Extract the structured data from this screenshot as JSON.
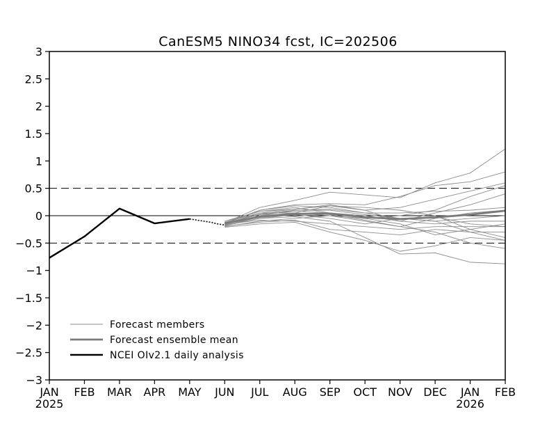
{
  "chart_data": {
    "type": "line",
    "title": "CanESM5 NINO34 fcst, IC=202506",
    "xlabel": "",
    "ylabel": "",
    "x_ticks": [
      "JAN",
      "FEB",
      "MAR",
      "APR",
      "MAY",
      "JUN",
      "JUL",
      "AUG",
      "SEP",
      "OCT",
      "NOV",
      "DEC",
      "JAN",
      "FEB"
    ],
    "x_year_labels": [
      {
        "index": 0,
        "label": "2025"
      },
      {
        "index": 12,
        "label": "2026"
      }
    ],
    "x_range": [
      "2025-01",
      "2026-02"
    ],
    "ylim": [
      -3,
      3
    ],
    "y_ticks": [
      3,
      2.5,
      2,
      1.5,
      1,
      0.5,
      0,
      -0.5,
      -1,
      -1.5,
      -2,
      -2.5,
      -3
    ],
    "y_tick_labels": [
      "3",
      "2.5",
      "2",
      "1.5",
      "1",
      "0.5",
      "0",
      "−0.5",
      "−1",
      "−1.5",
      "−2",
      "−2.5",
      "−3"
    ],
    "reference_lines": [
      {
        "y": 0.5,
        "style": "dashed"
      },
      {
        "y": 0,
        "style": "solid"
      },
      {
        "y": -0.5,
        "style": "dashed"
      }
    ],
    "legend": {
      "position": "bottom-left",
      "entries": [
        {
          "label": "Forecast members",
          "color": "#8c8c8c",
          "width": "thin"
        },
        {
          "label": "Forecast ensemble mean",
          "color": "#7a7a7a",
          "width": "medium"
        },
        {
          "label": "NCEI OIv2.1 daily analysis",
          "color": "#000000",
          "width": "thick"
        }
      ]
    },
    "series": [
      {
        "role": "observed",
        "x": [
          0,
          1,
          2,
          3,
          4
        ],
        "values": [
          -0.77,
          -0.38,
          0.13,
          -0.14,
          -0.06
        ]
      },
      {
        "role": "daily",
        "x": [
          4,
          4.2,
          4.4,
          4.6,
          4.8,
          5
        ],
        "values": [
          -0.06,
          -0.08,
          -0.1,
          -0.12,
          -0.15,
          -0.17
        ]
      },
      {
        "role": "mean",
        "x": [
          5,
          6,
          7,
          8,
          9,
          10,
          11,
          12,
          13
        ],
        "values": [
          -0.14,
          -0.02,
          0.03,
          0.04,
          -0.03,
          -0.06,
          -0.03,
          0.02,
          0.09
        ]
      },
      {
        "role": "member",
        "x": [
          5,
          6,
          7,
          8,
          9,
          10,
          11,
          12,
          13
        ],
        "values": [
          -0.13,
          0.15,
          0.28,
          0.43,
          0.38,
          0.33,
          0.6,
          0.78,
          1.22
        ]
      },
      {
        "role": "member",
        "x": [
          5,
          6,
          7,
          8,
          9,
          10,
          11,
          12,
          13
        ],
        "values": [
          -0.15,
          0.1,
          0.2,
          0.22,
          0.2,
          0.35,
          0.55,
          0.62,
          0.8
        ]
      },
      {
        "role": "member",
        "x": [
          5,
          6,
          7,
          8,
          9,
          10,
          11,
          12,
          13
        ],
        "values": [
          -0.12,
          0.05,
          0.12,
          0.2,
          0.1,
          0.15,
          0.3,
          0.45,
          0.6
        ]
      },
      {
        "role": "member",
        "x": [
          5,
          6,
          7,
          8,
          9,
          10,
          11,
          12,
          13
        ],
        "values": [
          -0.1,
          0.08,
          0.15,
          0.05,
          -0.05,
          0.0,
          0.1,
          0.35,
          0.55
        ]
      },
      {
        "role": "member",
        "x": [
          5,
          6,
          7,
          8,
          9,
          10,
          11,
          12,
          13
        ],
        "values": [
          -0.18,
          -0.02,
          0.05,
          0.18,
          0.1,
          -0.1,
          0.05,
          0.2,
          0.4
        ]
      },
      {
        "role": "member",
        "x": [
          5,
          6,
          7,
          8,
          9,
          10,
          11,
          12,
          13
        ],
        "values": [
          -0.15,
          0.0,
          0.1,
          0.12,
          0.05,
          0.05,
          0.08,
          0.1,
          0.15
        ]
      },
      {
        "role": "member",
        "x": [
          5,
          6,
          7,
          8,
          9,
          10,
          11,
          12,
          13
        ],
        "values": [
          -0.2,
          -0.1,
          -0.05,
          0.0,
          -0.1,
          -0.2,
          -0.05,
          0.05,
          0.1
        ]
      },
      {
        "role": "member",
        "x": [
          5,
          6,
          7,
          8,
          9,
          10,
          11,
          12,
          13
        ],
        "values": [
          -0.17,
          -0.05,
          0.02,
          -0.05,
          -0.15,
          -0.05,
          -0.1,
          -0.05,
          0.0
        ]
      },
      {
        "role": "member",
        "x": [
          5,
          6,
          7,
          8,
          9,
          10,
          11,
          12,
          13
        ],
        "values": [
          -0.14,
          0.02,
          0.08,
          0.05,
          0.0,
          -0.1,
          -0.15,
          -0.1,
          -0.1
        ]
      },
      {
        "role": "member",
        "x": [
          5,
          6,
          7,
          8,
          9,
          10,
          11,
          12,
          13
        ],
        "values": [
          -0.16,
          -0.08,
          -0.1,
          -0.15,
          -0.2,
          -0.25,
          -0.2,
          -0.2,
          -0.2
        ]
      },
      {
        "role": "member",
        "x": [
          5,
          6,
          7,
          8,
          9,
          10,
          11,
          12,
          13
        ],
        "values": [
          -0.19,
          -0.12,
          -0.08,
          -0.25,
          -0.3,
          -0.35,
          -0.25,
          -0.3,
          -0.3
        ]
      },
      {
        "role": "member",
        "x": [
          5,
          6,
          7,
          8,
          9,
          10,
          11,
          12,
          13
        ],
        "values": [
          -0.21,
          -0.15,
          -0.12,
          -0.3,
          -0.45,
          -0.65,
          -0.55,
          -0.4,
          -0.45
        ]
      },
      {
        "role": "member",
        "x": [
          5,
          6,
          7,
          8,
          9,
          10,
          11,
          12,
          13
        ],
        "values": [
          -0.18,
          -0.05,
          -0.02,
          -0.1,
          -0.4,
          -0.7,
          -0.68,
          -0.85,
          -0.88
        ]
      },
      {
        "role": "member",
        "x": [
          5,
          6,
          7,
          8,
          9,
          10,
          11,
          12,
          13
        ],
        "values": [
          -0.15,
          0.05,
          0.05,
          0.02,
          -0.08,
          -0.2,
          -0.3,
          -0.5,
          -0.6
        ]
      },
      {
        "role": "member",
        "x": [
          5,
          6,
          7,
          8,
          9,
          10,
          11,
          12,
          13
        ],
        "values": [
          -0.13,
          0.1,
          0.18,
          0.15,
          0.05,
          -0.05,
          -0.1,
          -0.3,
          -0.45
        ]
      },
      {
        "role": "member",
        "x": [
          5,
          6,
          7,
          8,
          9,
          10,
          11,
          12,
          13
        ],
        "values": [
          -0.16,
          0.0,
          0.05,
          0.0,
          -0.05,
          -0.15,
          -0.35,
          -0.25,
          -0.4
        ]
      },
      {
        "role": "member",
        "x": [
          5,
          6,
          7,
          8,
          9,
          10,
          11,
          12,
          13
        ],
        "values": [
          -0.14,
          0.03,
          0.1,
          0.1,
          0.02,
          -0.05,
          -0.02,
          -0.15,
          -0.2
        ]
      },
      {
        "role": "member",
        "x": [
          5,
          6,
          7,
          8,
          9,
          10,
          11,
          12,
          13
        ],
        "values": [
          -0.12,
          0.08,
          0.12,
          0.18,
          0.15,
          0.1,
          0.0,
          -0.25,
          -0.15
        ]
      }
    ]
  }
}
